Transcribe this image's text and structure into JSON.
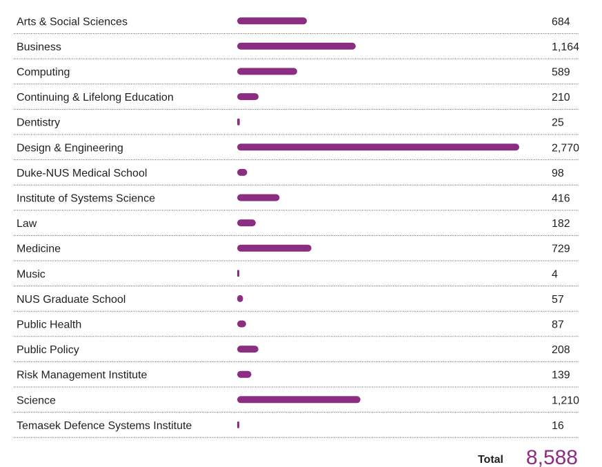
{
  "chart_data": {
    "type": "bar",
    "orientation": "horizontal",
    "categories": [
      "Arts & Social Sciences",
      "Business",
      "Computing",
      "Continuing & Lifelong Education",
      "Dentistry",
      "Design & Engineering",
      "Duke-NUS Medical School",
      "Institute of Systems Science",
      "Law",
      "Medicine",
      "Music",
      "NUS Graduate School",
      "Public Health",
      "Public Policy",
      "Risk Management Institute",
      "Science",
      "Temasek Defence Systems Institute"
    ],
    "values": [
      684,
      1164,
      589,
      210,
      25,
      2770,
      98,
      416,
      182,
      729,
      4,
      57,
      87,
      208,
      139,
      1210,
      16
    ],
    "value_labels": [
      "684",
      "1,164",
      "589",
      "210",
      "25",
      "2,770",
      "98",
      "416",
      "182",
      "729",
      "4",
      "57",
      "87",
      "208",
      "139",
      "1,210",
      "16"
    ],
    "bar_color": "#8b2e82",
    "grid": false,
    "row_dividers": "dotted",
    "total_label": "Total",
    "total_value": "8,588"
  }
}
